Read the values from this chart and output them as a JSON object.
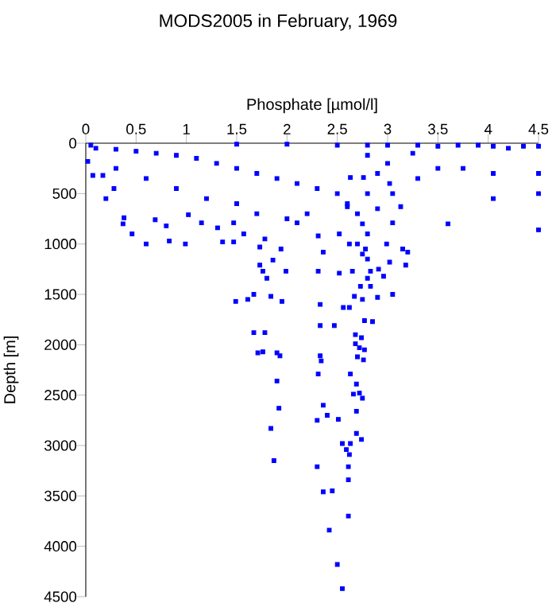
{
  "chart_data": {
    "type": "scatter",
    "title": "MODS2005 in February, 1969",
    "xlabel": "Phosphate [µmol/l]",
    "ylabel": "Depth [m]",
    "color": "#0000ff",
    "marker": "square",
    "xlim": [
      0,
      4.5
    ],
    "ylim": [
      4500,
      0
    ],
    "xticks": [
      0,
      0.5,
      1,
      1.5,
      2,
      2.5,
      3,
      3.5,
      4,
      4.5
    ],
    "yticks": [
      0,
      500,
      1000,
      1500,
      2000,
      2500,
      3000,
      3500,
      4000,
      4500
    ],
    "x": [
      0.05,
      0.1,
      0.3,
      0.5,
      0.7,
      0.9,
      1.1,
      1.3,
      1.5,
      1.7,
      1.9,
      2.1,
      2.3,
      2.5,
      2.6,
      2.7,
      2.75,
      2.8,
      2.7,
      2.75,
      2.8,
      1.5,
      2.0,
      2.5,
      2.8,
      3.0,
      3.0,
      2.8,
      2.9,
      2.8,
      2.9,
      0.3,
      0.6,
      0.9,
      1.2,
      1.5,
      1.7,
      2.0,
      2.2,
      3.25,
      3.3,
      3.5,
      3.7,
      3.9,
      4.05,
      4.2,
      4.35,
      4.5,
      3.75,
      4.05,
      4.5,
      3.3,
      4.05,
      4.5,
      3.6,
      4.5,
      3.5,
      0.02,
      0.07,
      0.17,
      0.28,
      0.2,
      0.38,
      0.37,
      0.46,
      0.6,
      0.83,
      0.99,
      0.8,
      0.69,
      1.02,
      1.15,
      1.31,
      1.47,
      1.36,
      1.47,
      1.57,
      1.73,
      1.78,
      1.94,
      1.86,
      2.1,
      2.31,
      2.36,
      2.52,
      2.62,
      2.78,
      2.99,
      3.15,
      3.2,
      3.05,
      3.13,
      3.05,
      3.02,
      2.76,
      2.63,
      2.6,
      1.49,
      1.61,
      1.67,
      1.67,
      1.78,
      1.71,
      1.76,
      1.9,
      1.93,
      1.9,
      1.92,
      1.84,
      1.87,
      1.95,
      1.84,
      1.73,
      1.8,
      2.3,
      2.31,
      2.33,
      2.34,
      2.33,
      2.33,
      2.36,
      2.3,
      2.4,
      2.51,
      2.36,
      2.45,
      2.42,
      2.5,
      2.55,
      2.61,
      2.61,
      2.61,
      2.59,
      2.55,
      2.63,
      2.62,
      2.74,
      2.69,
      2.69,
      2.75,
      2.72,
      2.66,
      2.69,
      2.63,
      2.76,
      2.7,
      2.77,
      2.72,
      2.68,
      2.74,
      2.68,
      2.77,
      2.85,
      2.47,
      2.62,
      2.56,
      3.05,
      2.9,
      2.75,
      2.67,
      2.83,
      2.73,
      2.8,
      2.96,
      2.91,
      2.83,
      3.02,
      3.18,
      2.65,
      2.52,
      2.31,
      1.99,
      1.76
    ],
    "values": [
      20,
      50,
      60,
      80,
      100,
      120,
      150,
      200,
      250,
      300,
      350,
      400,
      450,
      500,
      600,
      700,
      800,
      900,
      1000,
      1100,
      1150,
      10,
      10,
      20,
      20,
      20,
      200,
      120,
      300,
      500,
      650,
      250,
      350,
      450,
      550,
      600,
      700,
      750,
      700,
      100,
      20,
      30,
      20,
      20,
      30,
      50,
      30,
      30,
      250,
      300,
      300,
      350,
      550,
      500,
      800,
      860,
      250,
      180,
      320,
      320,
      450,
      550,
      740,
      800,
      900,
      1000,
      970,
      1000,
      820,
      760,
      710,
      790,
      840,
      790,
      980,
      980,
      900,
      1030,
      950,
      1050,
      1160,
      790,
      920,
      1080,
      900,
      1000,
      1050,
      1000,
      1050,
      1080,
      790,
      630,
      500,
      400,
      340,
      340,
      630,
      1570,
      1550,
      1500,
      1880,
      1880,
      2080,
      2070,
      2080,
      2110,
      2360,
      2630,
      2830,
      3150,
      1570,
      1520,
      1210,
      1340,
      3210,
      2290,
      2110,
      2160,
      1810,
      1600,
      2600,
      2750,
      2700,
      2740,
      3460,
      3450,
      3840,
      4180,
      4420,
      3700,
      3340,
      3210,
      3040,
      2980,
      2980,
      3090,
      2940,
      2880,
      2660,
      2530,
      2480,
      2490,
      2390,
      2290,
      2150,
      2120,
      2050,
      2030,
      1990,
      1930,
      1900,
      1760,
      1770,
      1810,
      1630,
      1630,
      1500,
      1530,
      1550,
      1520,
      1420,
      1420,
      1340,
      1320,
      1250,
      1270,
      1180,
      1210,
      1270,
      1290,
      1270,
      1270,
      1270
    ]
  }
}
